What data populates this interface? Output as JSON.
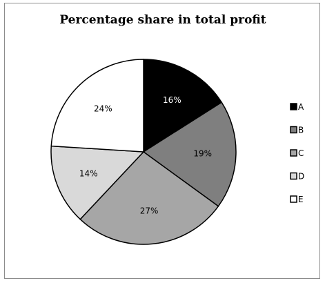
{
  "chart_data": {
    "type": "pie",
    "title": "Percentage share in total profit",
    "categories": [
      "A",
      "B",
      "C",
      "D",
      "E"
    ],
    "values": [
      16,
      19,
      27,
      14,
      24
    ],
    "value_labels": [
      "16%",
      "19%",
      "27%",
      "14%",
      "24%"
    ],
    "colors": [
      "#000000",
      "#7f7f7f",
      "#a6a6a6",
      "#d9d9d9",
      "#ffffff"
    ],
    "start_angle_deg": 0,
    "direction": "clockwise",
    "legend": "right"
  }
}
